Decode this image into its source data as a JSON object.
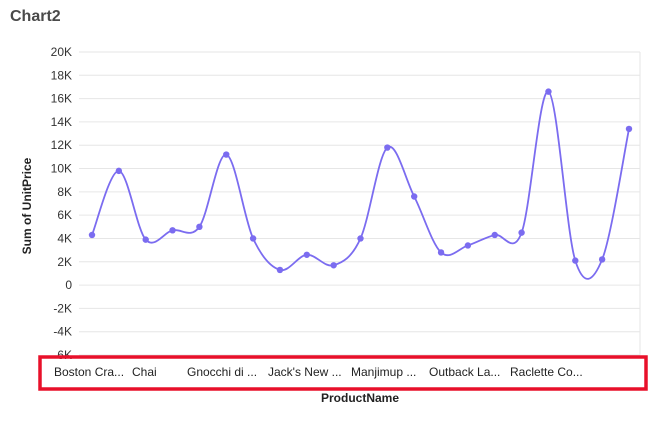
{
  "page": {
    "title": "Chart2"
  },
  "chart_data": {
    "type": "line",
    "smooth": true,
    "xlabel": "ProductName",
    "ylabel": "Sum of UnitPrice",
    "ylim": [
      -6000,
      20000
    ],
    "y_ticks": [
      {
        "value": 20000,
        "label": "20K"
      },
      {
        "value": 18000,
        "label": "18K"
      },
      {
        "value": 16000,
        "label": "16K"
      },
      {
        "value": 14000,
        "label": "14K"
      },
      {
        "value": 12000,
        "label": "12K"
      },
      {
        "value": 10000,
        "label": "10K"
      },
      {
        "value": 8000,
        "label": "8K"
      },
      {
        "value": 6000,
        "label": "6K"
      },
      {
        "value": 4000,
        "label": "4K"
      },
      {
        "value": 2000,
        "label": "2K"
      },
      {
        "value": 0,
        "label": "0"
      },
      {
        "value": -2000,
        "label": "-2K"
      },
      {
        "value": -4000,
        "label": "-4K"
      },
      {
        "value": -6000,
        "label": "-6K"
      }
    ],
    "category_labels": [
      {
        "index": 0,
        "text": "Boston Cra..."
      },
      {
        "index": 1,
        "text": "Chai"
      },
      {
        "index": 4,
        "text": "Gnocchi di ..."
      },
      {
        "index": 7,
        "text": "Jack's New ..."
      },
      {
        "index": 10,
        "text": "Manjimup ..."
      },
      {
        "index": 13,
        "text": "Outback La..."
      },
      {
        "index": 16,
        "text": "Raclette Co..."
      }
    ],
    "grid": true,
    "series": [
      {
        "color": "#7b6cf0",
        "values": [
          4300,
          9800,
          3900,
          4700,
          5000,
          11200,
          4000,
          1300,
          2600,
          1700,
          4000,
          11800,
          7600,
          2800,
          3400,
          4300,
          4500,
          16600,
          2100,
          2200,
          13400
        ]
      }
    ]
  },
  "highlight": {
    "color": "#e8102a",
    "target": "x-axis category labels"
  }
}
